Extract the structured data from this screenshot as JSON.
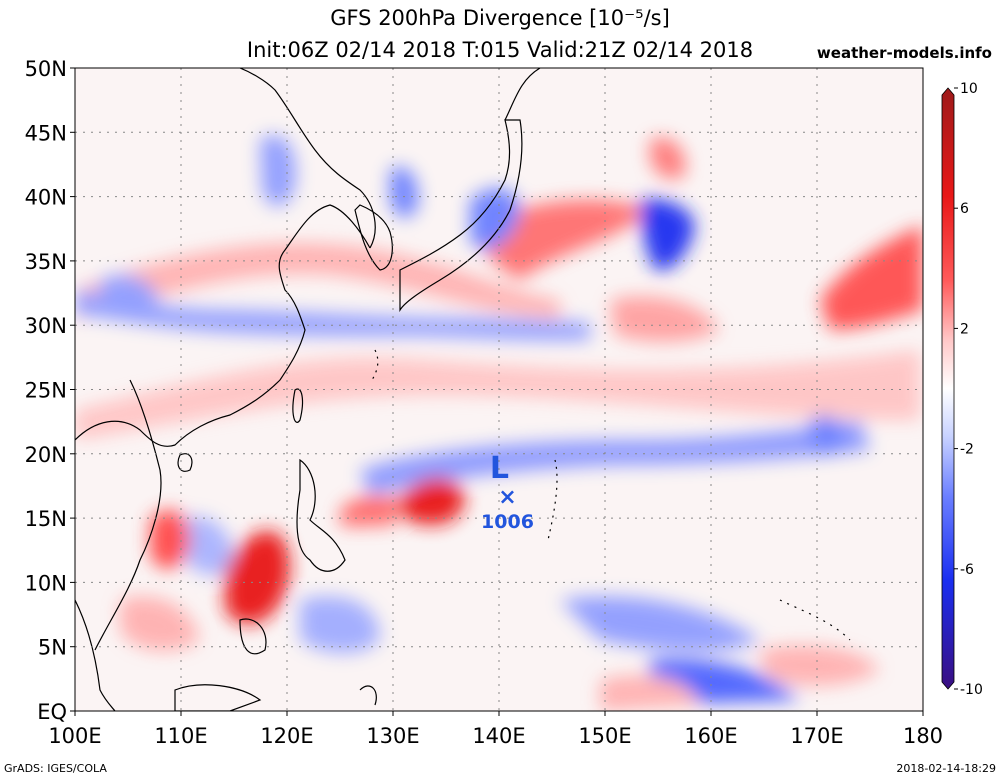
{
  "title": {
    "line1": "GFS 200hPa Divergence [10⁻⁵/s]",
    "line2": "Init:06Z 02/14 2018 T:015 Valid:21Z 02/14 2018"
  },
  "site": "weather-models.info",
  "footer": {
    "left": "GrADS: IGES/COLA",
    "right": "2018-02-14-18:29"
  },
  "map": {
    "lon_range": [
      100,
      180
    ],
    "lat_range": [
      0,
      50
    ],
    "lat_labels": [
      "50N",
      "45N",
      "40N",
      "35N",
      "30N",
      "25N",
      "20N",
      "15N",
      "10N",
      "5N",
      "EQ"
    ],
    "lon_labels": [
      "100E",
      "110E",
      "120E",
      "130E",
      "140E",
      "150E",
      "160E",
      "170E",
      "180"
    ],
    "grid": "dotted"
  },
  "colorbar": {
    "range": [
      -10,
      10
    ],
    "labels": [
      "10",
      "6",
      "2",
      "-2",
      "-6",
      "-10"
    ],
    "colors": {
      "high": "#b01010",
      "mid_high": "#ff2020",
      "white": "#ffffff",
      "mid_low": "#3050ff",
      "low": "#3a0f80"
    }
  },
  "low_marker": {
    "symbol": "L",
    "cross": "×",
    "value": "1006",
    "lon": 140.8,
    "lat": 16.7
  }
}
